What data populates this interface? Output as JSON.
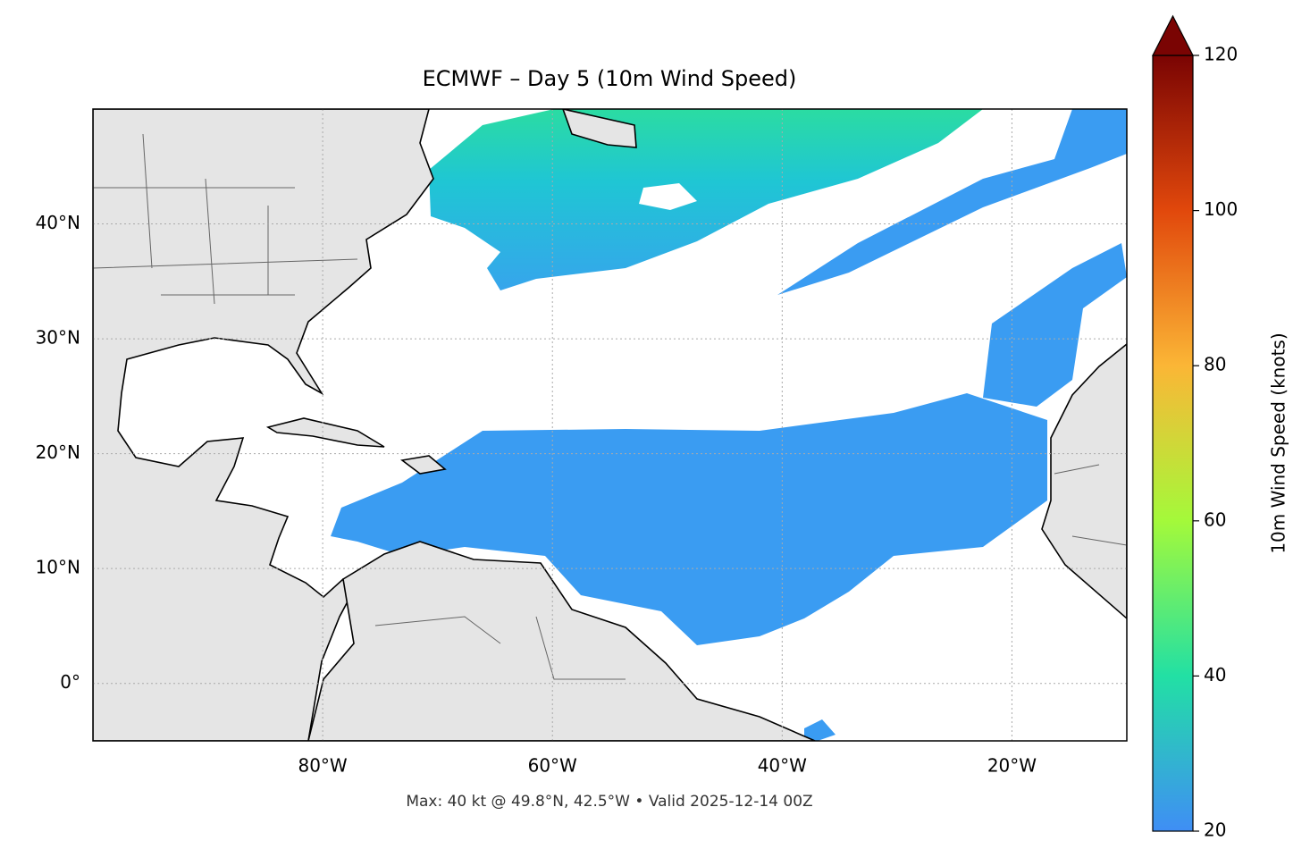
{
  "map": {
    "title": "ECMWF – Day 5 (10m Wind Speed)",
    "footnote": "Max: 40 kt @ 49.8°N, 42.5°W • Valid 2025-12-14 00Z",
    "xlim": [
      -100,
      -10
    ],
    "ylim": [
      -5,
      50
    ],
    "xticks": [
      {
        "value": -80,
        "label": "80°W"
      },
      {
        "value": -60,
        "label": "60°W"
      },
      {
        "value": -40,
        "label": "40°W"
      },
      {
        "value": -20,
        "label": "20°W"
      }
    ],
    "yticks": [
      {
        "value": 0,
        "label": "0°"
      },
      {
        "value": 10,
        "label": "10°N"
      },
      {
        "value": 20,
        "label": "20°N"
      },
      {
        "value": 30,
        "label": "30°N"
      },
      {
        "value": 40,
        "label": "40°N"
      }
    ],
    "grid": true,
    "colorbar": {
      "label": "10m Wind Speed (knots)",
      "lim": [
        20,
        120
      ],
      "ticks": [
        20,
        40,
        60,
        80,
        100,
        120
      ],
      "extend": "max"
    }
  }
}
